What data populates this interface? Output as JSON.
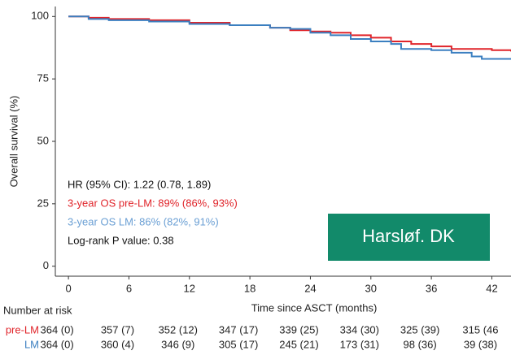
{
  "chart_data": {
    "type": "line",
    "step": true,
    "x_label": "Time since ASCT (months)",
    "y_label": "Overall survival (%)",
    "xlim": [
      -1.3,
      43.9
    ],
    "ylim": [
      -4,
      104
    ],
    "xticks": [
      0,
      6,
      12,
      18,
      24,
      30,
      36,
      42
    ],
    "yticks": [
      0,
      25,
      50,
      75,
      100
    ],
    "series": [
      {
        "name": "pre-LM",
        "color": "#e0242a",
        "x": [
          0,
          2,
          4,
          8,
          12,
          16,
          20,
          22,
          24,
          26,
          28,
          30,
          32,
          34,
          36,
          38,
          40,
          42,
          43.9
        ],
        "values": [
          100,
          99.5,
          99,
          98.5,
          97.5,
          96.5,
          95.5,
          94.5,
          94,
          93.5,
          92.5,
          91.5,
          90,
          89,
          88,
          87,
          87,
          86.5,
          86
        ]
      },
      {
        "name": "LM",
        "color": "#3b7fc0",
        "x": [
          0,
          2,
          4,
          8,
          12,
          16,
          20,
          22,
          24,
          26,
          28,
          30,
          32,
          33,
          36,
          38,
          40,
          41,
          43.9
        ],
        "values": [
          100,
          99,
          98.5,
          98,
          97,
          96.5,
          95.5,
          95,
          93.5,
          92.5,
          91,
          90,
          89,
          87,
          86.5,
          85.5,
          84,
          83,
          83
        ]
      }
    ],
    "annotations": [
      {
        "text": "HR (95% CI): 1.22 (0.78, 1.89)",
        "color": "#111111"
      },
      {
        "text": "3-year OS pre-LM: 89% (86%, 93%)",
        "color": "#e0242a"
      },
      {
        "text": "3-year OS LM: 86% (82%, 91%)",
        "color": "#6a9fd4"
      },
      {
        "text": "Log-rank P value: 0.38",
        "color": "#111111"
      }
    ],
    "badge": "Harsløf. DK",
    "risk_table": {
      "title": "Number at risk",
      "rows": [
        {
          "name": "pre-LM",
          "color": "#e0242a",
          "values": [
            "364 (0)",
            "357 (7)",
            "352 (12)",
            "347 (17)",
            "339 (25)",
            "334 (30)",
            "325 (39)",
            "315 (46"
          ]
        },
        {
          "name": "LM",
          "color": "#3b7fc0",
          "values": [
            "364 (0)",
            "360 (4)",
            "346 (9)",
            "305 (17)",
            "245 (21)",
            "173 (31)",
            "98 (36)",
            "39 (38)"
          ]
        }
      ]
    }
  }
}
